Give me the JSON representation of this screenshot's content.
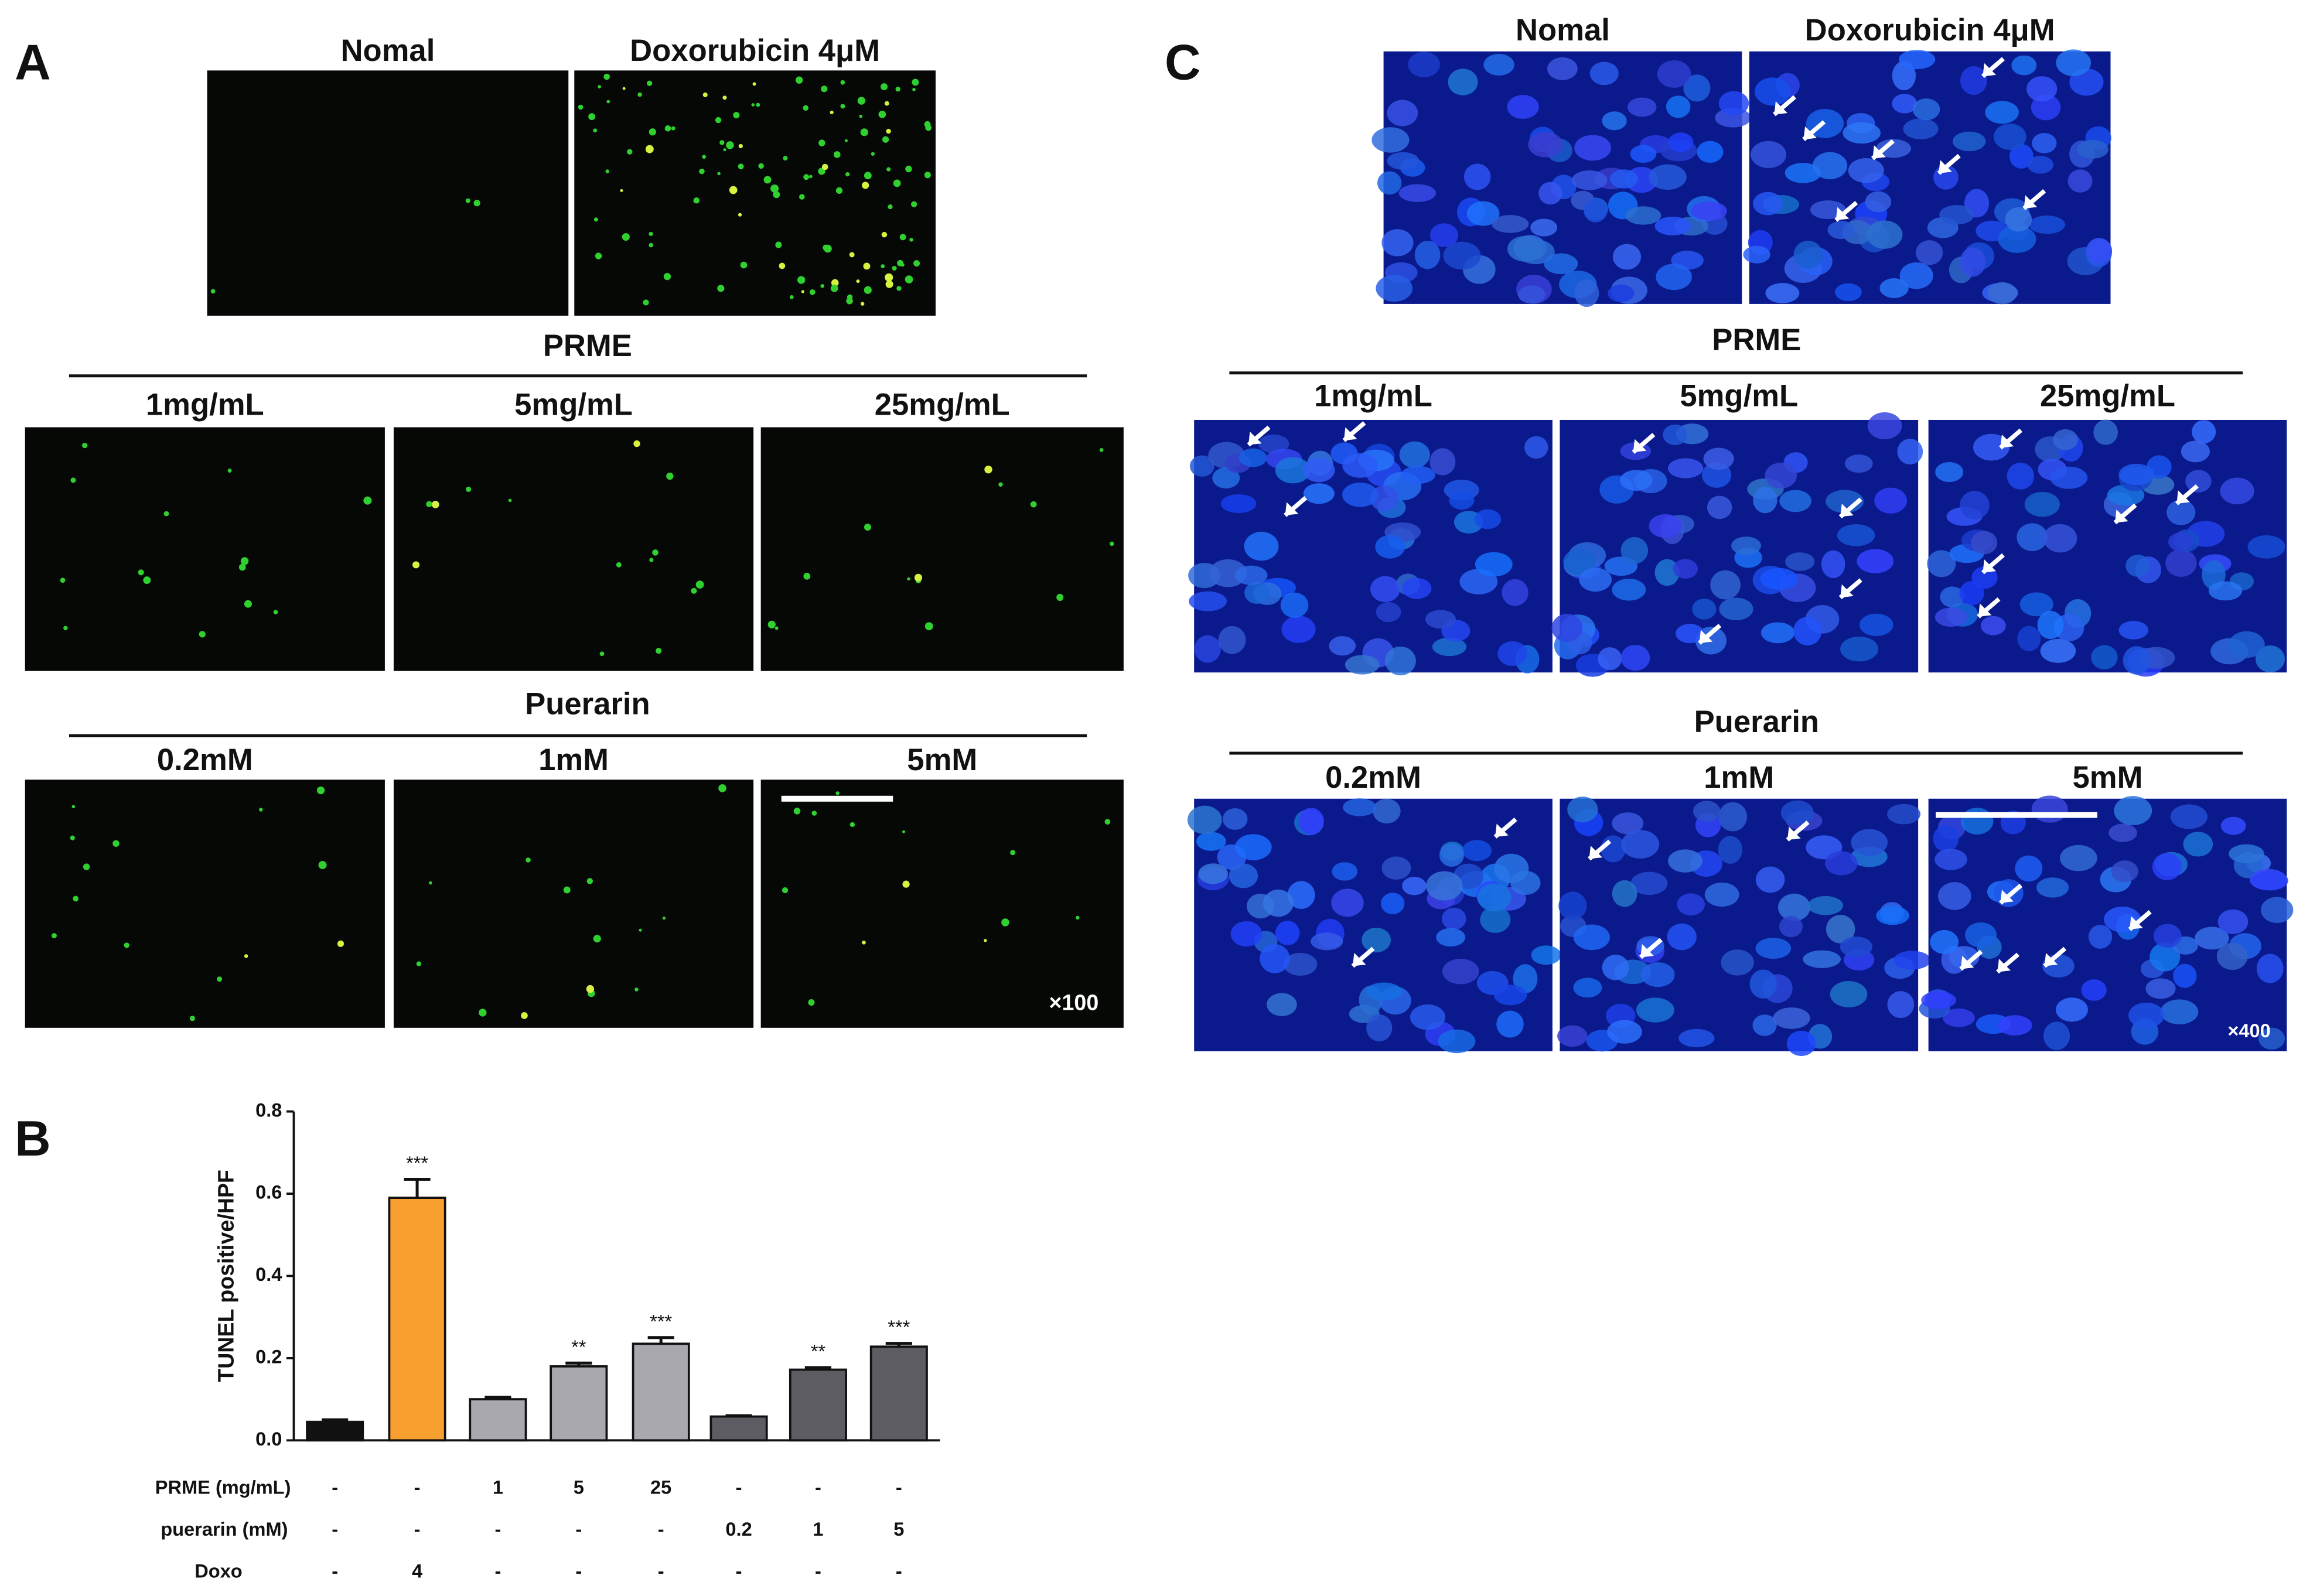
{
  "panels": {
    "a": "A",
    "b": "B",
    "c": "C"
  },
  "panel_a": {
    "top_labels": [
      "Nomal",
      "Doxorubicin 4μM"
    ],
    "group1": "PRME",
    "group1_labels": [
      "1mg/mL",
      "5mg/mL",
      "25mg/mL"
    ],
    "group2": "Puerarin",
    "group2_labels": [
      "0.2mM",
      "1mM",
      "5mM"
    ],
    "magnification": "×100"
  },
  "panel_c": {
    "top_labels": [
      "Nomal",
      "Doxorubicin 4μM"
    ],
    "group1": "PRME",
    "group1_labels": [
      "1mg/mL",
      "5mg/mL",
      "25mg/mL"
    ],
    "group2": "Puerarin",
    "group2_labels": [
      "0.2mM",
      "1mM",
      "5mM"
    ],
    "magnification": "×400"
  },
  "chart_data": {
    "type": "bar",
    "ylabel": "TUNEL positive/HPF",
    "categories": [
      null,
      null,
      null,
      null,
      null,
      null,
      null,
      null
    ],
    "values": [
      0.045,
      0.59,
      0.1,
      0.18,
      0.235,
      0.058,
      0.172,
      0.228
    ],
    "errors": [
      0.005,
      0.045,
      0.005,
      0.008,
      0.015,
      0.002,
      0.005,
      0.008
    ],
    "significance": [
      null,
      "***",
      null,
      "**",
      "***",
      null,
      "**",
      "***"
    ],
    "colors": [
      "#111111",
      "#f7a030",
      "#a8a8ae",
      "#a8a8ae",
      "#a8a8ae",
      "#5c5c62",
      "#5c5c62",
      "#5c5c62"
    ],
    "ylim": [
      0,
      0.8
    ],
    "yticks": [
      {
        "value": 0,
        "label": "0.0"
      },
      0.2,
      0.4,
      0.6,
      0.8
    ],
    "conditions": [
      {
        "name": "PRME (mg/mL)",
        "labels": [
          "-",
          "-",
          "1",
          "5",
          "25",
          "-",
          "-",
          "-"
        ]
      },
      {
        "name": "puerarin (mM)",
        "labels": [
          "-",
          "-",
          "-",
          "-",
          "-",
          "0.2",
          "1",
          "5"
        ]
      },
      {
        "name": "Doxo",
        "labels": [
          "-",
          "4",
          "-",
          "-",
          "-",
          "-",
          "-",
          "-"
        ]
      }
    ]
  }
}
